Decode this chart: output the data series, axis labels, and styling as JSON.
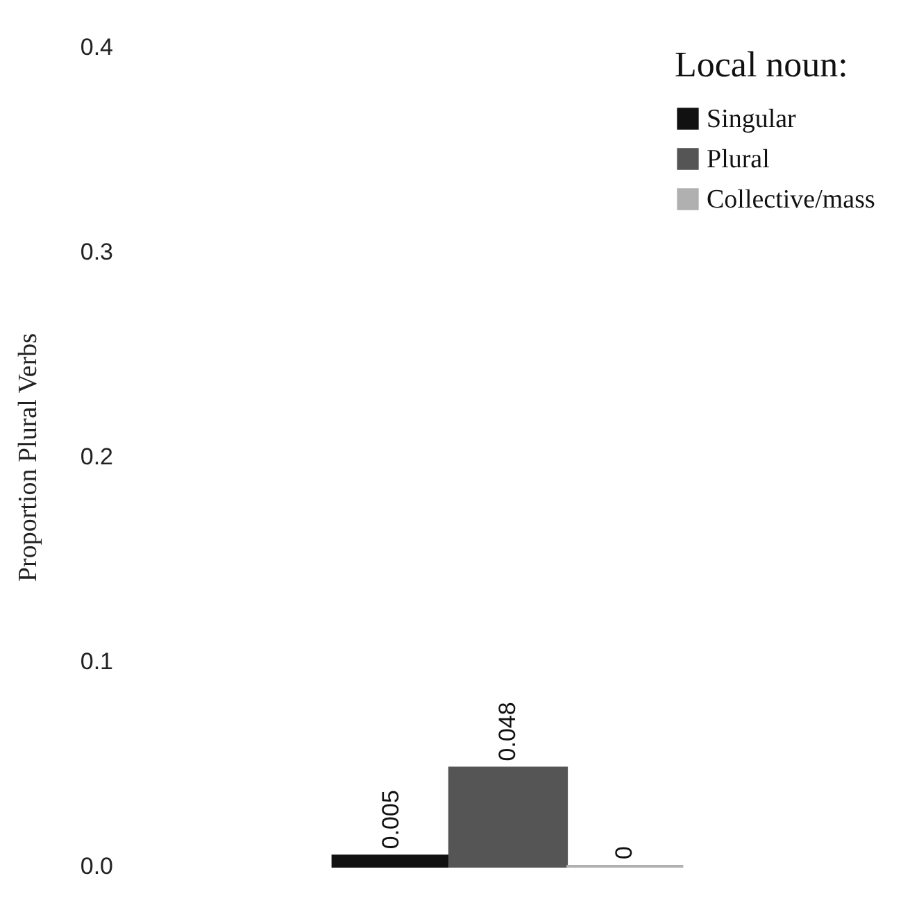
{
  "chart_data": {
    "type": "bar",
    "categories": [
      null
    ],
    "ylabel": "Proportion Plural Verbs",
    "legend_title": "Local noun:",
    "legend": "top right",
    "series": [
      {
        "name": "Singular",
        "color": "#111111",
        "values": [
          0.005
        ]
      },
      {
        "name": "Plural",
        "color": "#555555",
        "values": [
          0.048
        ]
      },
      {
        "name": "Collective/mass",
        "color": "#b0b0b0",
        "values": [
          0
        ]
      }
    ],
    "ylim": [
      0,
      0.4
    ],
    "yticks": [
      {
        "value": 0,
        "label": "0.0"
      },
      {
        "value": 0.1,
        "label": "0.1"
      },
      {
        "value": 0.2,
        "label": "0.2"
      },
      {
        "value": 0.3,
        "label": "0.3"
      },
      {
        "value": 0.4,
        "label": "0.4"
      }
    ],
    "data_labels": true,
    "grid": false,
    "tick_labels": "y"
  }
}
